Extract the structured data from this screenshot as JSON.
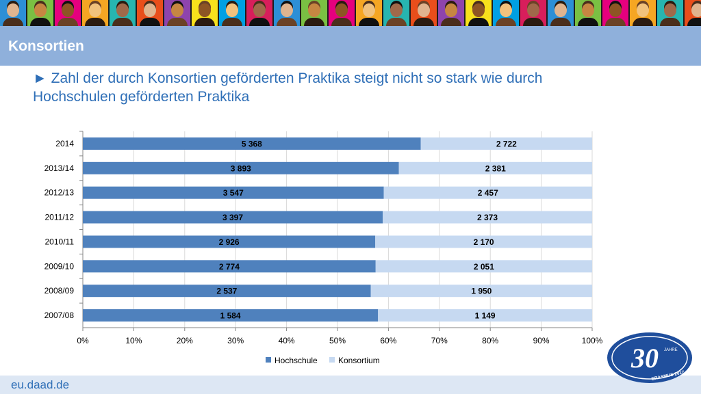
{
  "slide": {
    "title": "Konsortien",
    "headline_line1": "► Zahl der durch Konsortien geförderten Praktika steigt nicht so stark wie durch",
    "headline_line2": "Hochschulen geförderten Praktika",
    "footer": "eu.daad.de"
  },
  "logo": {
    "number": "30",
    "small_text": "JAHRE",
    "bottom_text": "ERASMUS 2017",
    "color": "#1f4e9c"
  },
  "banner_colors": [
    "#2d8fd6",
    "#7ac043",
    "#e6007e",
    "#f5a623",
    "#27b5b0",
    "#e94e1b",
    "#8e44ad",
    "#f7e11c",
    "#00a0e3",
    "#d81e5b"
  ],
  "chart_data": {
    "type": "bar",
    "orientation": "horizontal",
    "stacking": "percent",
    "categories": [
      "2014",
      "2013/14",
      "2012/13",
      "2011/12",
      "2010/11",
      "2009/10",
      "2008/09",
      "2007/08"
    ],
    "series": [
      {
        "name": "Hochschule",
        "values": [
          5368,
          3893,
          3547,
          3397,
          2926,
          2774,
          2537,
          1584
        ],
        "labels": [
          "5 368",
          "3 893",
          "3 547",
          "3 397",
          "2 926",
          "2 774",
          "2 537",
          "1 584"
        ],
        "color": "#4f81bd"
      },
      {
        "name": "Konsortium",
        "values": [
          2722,
          2381,
          2457,
          2373,
          2170,
          2051,
          1950,
          1149
        ],
        "labels": [
          "2 722",
          "2 381",
          "2 457",
          "2 373",
          "2 170",
          "2 051",
          "1 950",
          "1 149"
        ],
        "color": "#c6d9f1"
      }
    ],
    "xticks": [
      "0%",
      "10%",
      "20%",
      "30%",
      "40%",
      "50%",
      "60%",
      "70%",
      "80%",
      "90%",
      "100%"
    ],
    "xlim": [
      0,
      100
    ],
    "grid": true,
    "legend": "bottom"
  }
}
